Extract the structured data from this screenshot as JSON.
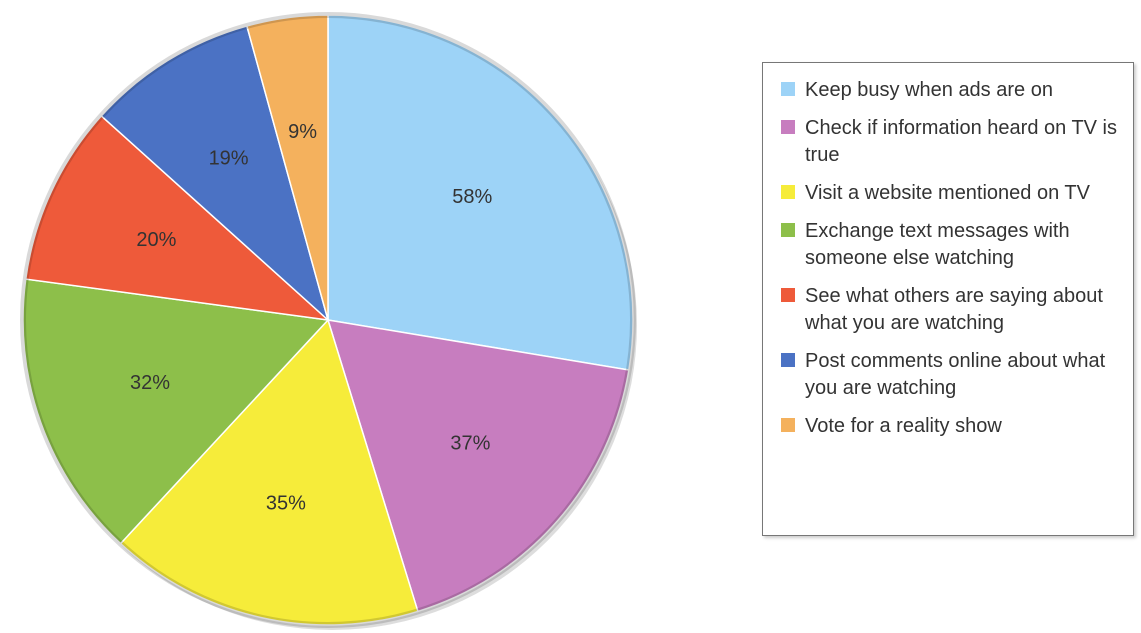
{
  "chart_data": {
    "type": "pie",
    "categories": [
      "Keep busy when ads are on",
      "Check if information heard on TV is true",
      "Visit a website mentioned on TV",
      "Exchange text messages with someone else watching",
      "See what others are saying about what you are watching",
      "Post comments online about what you are watching",
      "Vote for a reality show"
    ],
    "values": [
      58,
      37,
      35,
      32,
      20,
      19,
      9
    ],
    "value_labels": [
      "58%",
      "37%",
      "35%",
      "32%",
      "20%",
      "19%",
      "9%"
    ],
    "colors": [
      "#9dd3f7",
      "#c77dbf",
      "#f6ec3a",
      "#8dbf4a",
      "#ee5a3a",
      "#4b72c4",
      "#f4b15d"
    ],
    "legend": "right"
  }
}
